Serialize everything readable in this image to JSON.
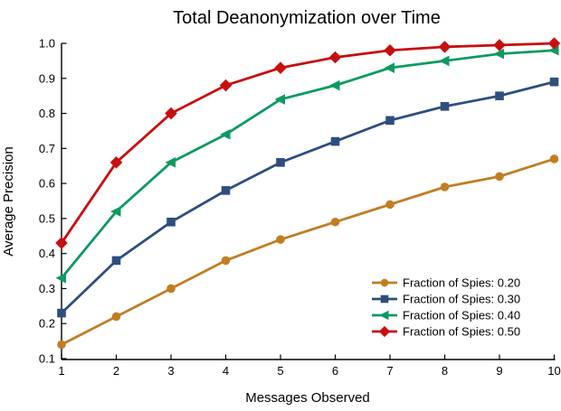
{
  "page": {
    "background": "#ffffff",
    "text_color": "#000000",
    "axis_color": "#000000"
  },
  "chart_data": {
    "type": "line",
    "title": "Total Deanonymization over Time",
    "xlabel": "Messages Observed",
    "ylabel": "Average Precision",
    "x": [
      1,
      2,
      3,
      4,
      5,
      6,
      7,
      8,
      9,
      10
    ],
    "x_tick_labels": [
      "1",
      "2",
      "3",
      "4",
      "5",
      "6",
      "7",
      "8",
      "9",
      "10"
    ],
    "y_ticks": [
      0.1,
      0.2,
      0.3,
      0.4,
      0.5,
      0.6,
      0.7,
      0.8,
      0.9,
      1.0
    ],
    "y_tick_labels": [
      "0.1",
      "0.2",
      "0.3",
      "0.4",
      "0.5",
      "0.6",
      "0.7",
      "0.8",
      "0.9",
      "1.0"
    ],
    "xlim": [
      1,
      10
    ],
    "ylim": [
      0.1,
      1.0
    ],
    "grid": false,
    "legend_position": "lower right",
    "series": [
      {
        "name": "Fraction of Spies: 0.20",
        "marker": "circle",
        "color": "#C07E24",
        "values": [
          0.14,
          0.22,
          0.3,
          0.38,
          0.44,
          0.49,
          0.54,
          0.59,
          0.62,
          0.67
        ]
      },
      {
        "name": "Fraction of Spies: 0.30",
        "marker": "square",
        "color": "#2E4E7E",
        "values": [
          0.23,
          0.38,
          0.49,
          0.58,
          0.66,
          0.72,
          0.78,
          0.82,
          0.85,
          0.89
        ]
      },
      {
        "name": "Fraction of Spies: 0.40",
        "marker": "triangle-left",
        "color": "#0E9A62",
        "values": [
          0.33,
          0.52,
          0.66,
          0.74,
          0.84,
          0.88,
          0.93,
          0.95,
          0.97,
          0.98
        ]
      },
      {
        "name": "Fraction of Spies: 0.50",
        "marker": "diamond",
        "color": "#C80F0F",
        "values": [
          0.43,
          0.66,
          0.8,
          0.88,
          0.93,
          0.96,
          0.98,
          0.99,
          0.995,
          1.0
        ]
      }
    ]
  }
}
